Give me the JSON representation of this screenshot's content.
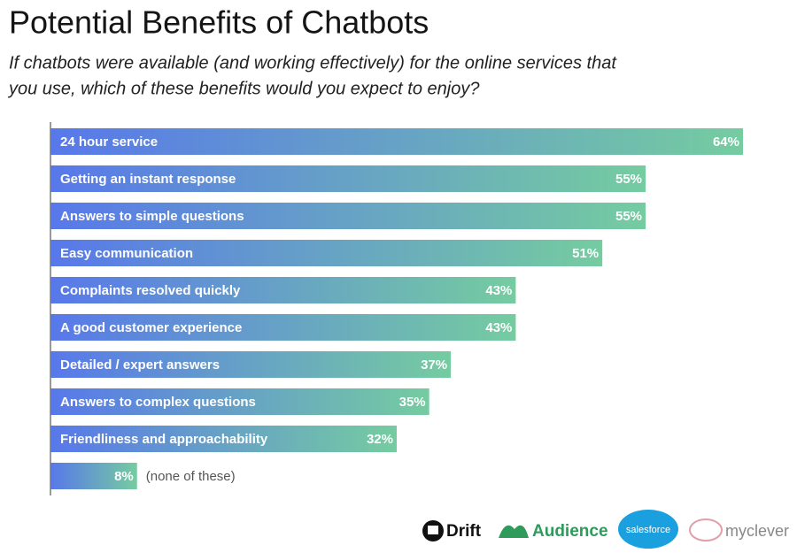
{
  "chart_data": {
    "type": "hbar",
    "title": "Potential Benefits of Chatbots",
    "subtitle": [
      "If chatbots were available (and working effectively) for the online services that",
      "you use, which of these benefits would you expect to enjoy?"
    ],
    "categories": [
      "24 hour service",
      "Getting an instant response",
      "Answers to simple questions",
      "Easy communication",
      "Complaints resolved quickly",
      "A good customer experience",
      "Detailed / expert answers",
      "Answers to complex questions",
      "Friendliness and approachability",
      "(none of these)"
    ],
    "values": [
      64,
      55,
      55,
      51,
      43,
      43,
      37,
      35,
      32,
      8
    ],
    "value_labels": [
      "64%",
      "55%",
      "55%",
      "51%",
      "43%",
      "43%",
      "37%",
      "35%",
      "32%",
      "8%"
    ],
    "colors": [
      "#5878ea",
      "#75cca0"
    ]
  },
  "footer": {
    "logos": [
      "Drift",
      "Audience",
      "salesforce",
      "myclever"
    ]
  }
}
